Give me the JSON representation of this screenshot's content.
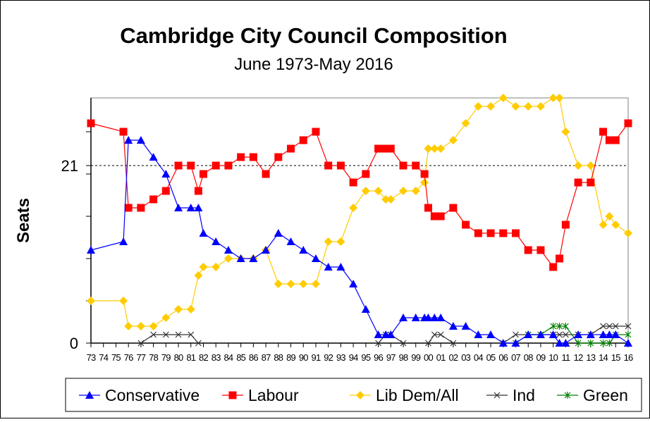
{
  "chart_data": {
    "type": "line",
    "title": "Cambridge City Council Composition",
    "subtitle": "June 1973-May 2016",
    "xlabel": "",
    "ylabel": "Seats",
    "xlim": [
      73,
      116
    ],
    "ylim": [
      0,
      29
    ],
    "y_tick_labels": [
      {
        "value": 0,
        "label": "0"
      },
      {
        "value": 21,
        "label": "21"
      }
    ],
    "y_minor_ticks": [
      5,
      10,
      15,
      20,
      25
    ],
    "reference_line": {
      "value": 21,
      "style": "dashed"
    },
    "x_tick_labels": [
      "73",
      "74",
      "75",
      "76",
      "77",
      "78",
      "79",
      "80",
      "81",
      "82",
      "83",
      "84",
      "85",
      "86",
      "87",
      "88",
      "89",
      "90",
      "91",
      "92",
      "93",
      "94",
      "95",
      "96",
      "97",
      "98",
      "99",
      "00",
      "01",
      "02",
      "03",
      "04",
      "05",
      "06",
      "07",
      "08",
      "09",
      "10",
      "11",
      "12",
      "13",
      "14",
      "15",
      "16"
    ],
    "x": [
      73,
      75.6,
      76,
      77,
      78,
      79,
      80,
      81,
      81.6,
      82,
      83,
      84,
      85,
      86,
      87,
      88,
      89,
      90,
      91,
      92,
      93,
      94,
      95,
      96,
      96.6,
      97,
      98,
      99,
      99.7,
      100,
      100.5,
      101,
      102,
      103,
      104,
      105,
      106,
      107,
      108,
      109,
      110,
      110.5,
      111,
      112,
      113,
      114,
      114.5,
      115,
      116
    ],
    "series": [
      {
        "name": "Conservative",
        "color": "#0000FF",
        "marker": "triangle",
        "values": [
          11,
          12,
          24,
          24,
          22,
          20,
          16,
          16,
          16,
          13,
          12,
          11,
          10,
          10,
          11,
          13,
          12,
          11,
          10,
          9,
          9,
          7,
          4,
          1,
          1,
          1,
          3,
          3,
          3,
          3,
          3,
          3,
          2,
          2,
          1,
          1,
          0,
          0,
          1,
          1,
          1,
          0,
          0,
          1,
          1,
          1,
          1,
          1,
          0
        ]
      },
      {
        "name": "Labour",
        "color": "#FF0000",
        "marker": "square",
        "values": [
          26,
          25,
          16,
          16,
          17,
          18,
          21,
          21,
          18,
          20,
          21,
          21,
          22,
          22,
          20,
          22,
          23,
          24,
          25,
          21,
          21,
          19,
          20,
          23,
          23,
          23,
          21,
          21,
          20,
          16,
          15,
          15,
          16,
          14,
          13,
          13,
          13,
          13,
          11,
          11,
          9,
          10,
          14,
          19,
          19,
          25,
          24,
          24,
          26
        ]
      },
      {
        "name": "Lib Dem/All",
        "color": "#FFCC00",
        "marker": "diamond",
        "values": [
          5,
          5,
          2,
          2,
          2,
          3,
          4,
          4,
          8,
          9,
          9,
          10,
          10,
          10,
          11,
          7,
          7,
          7,
          7,
          12,
          12,
          16,
          18,
          18,
          17,
          17,
          18,
          18,
          19,
          23,
          23,
          23,
          24,
          26,
          28,
          28,
          29,
          28,
          28,
          28,
          29,
          29,
          25,
          21,
          21,
          14,
          15,
          14,
          13
        ]
      },
      {
        "name": "Ind",
        "color": "#333333",
        "marker": "x",
        "values": [
          null,
          null,
          null,
          0,
          1,
          1,
          1,
          1,
          0,
          null,
          null,
          null,
          null,
          null,
          null,
          null,
          null,
          null,
          null,
          null,
          null,
          null,
          null,
          0,
          1,
          1,
          0,
          null,
          null,
          0,
          1,
          1,
          0,
          null,
          null,
          null,
          0,
          1,
          1,
          1,
          1,
          1,
          1,
          1,
          1,
          2,
          2,
          2,
          2
        ]
      },
      {
        "name": "Green",
        "color": "#008000",
        "marker": "star",
        "values": [
          null,
          null,
          null,
          null,
          null,
          null,
          null,
          null,
          null,
          null,
          null,
          null,
          null,
          null,
          null,
          null,
          null,
          null,
          null,
          null,
          null,
          null,
          null,
          null,
          null,
          null,
          null,
          null,
          null,
          null,
          null,
          null,
          null,
          null,
          null,
          null,
          null,
          0,
          1,
          1,
          2,
          2,
          2,
          0,
          0,
          0,
          0,
          1,
          1
        ]
      }
    ],
    "legend": "bottom",
    "grid": false
  }
}
